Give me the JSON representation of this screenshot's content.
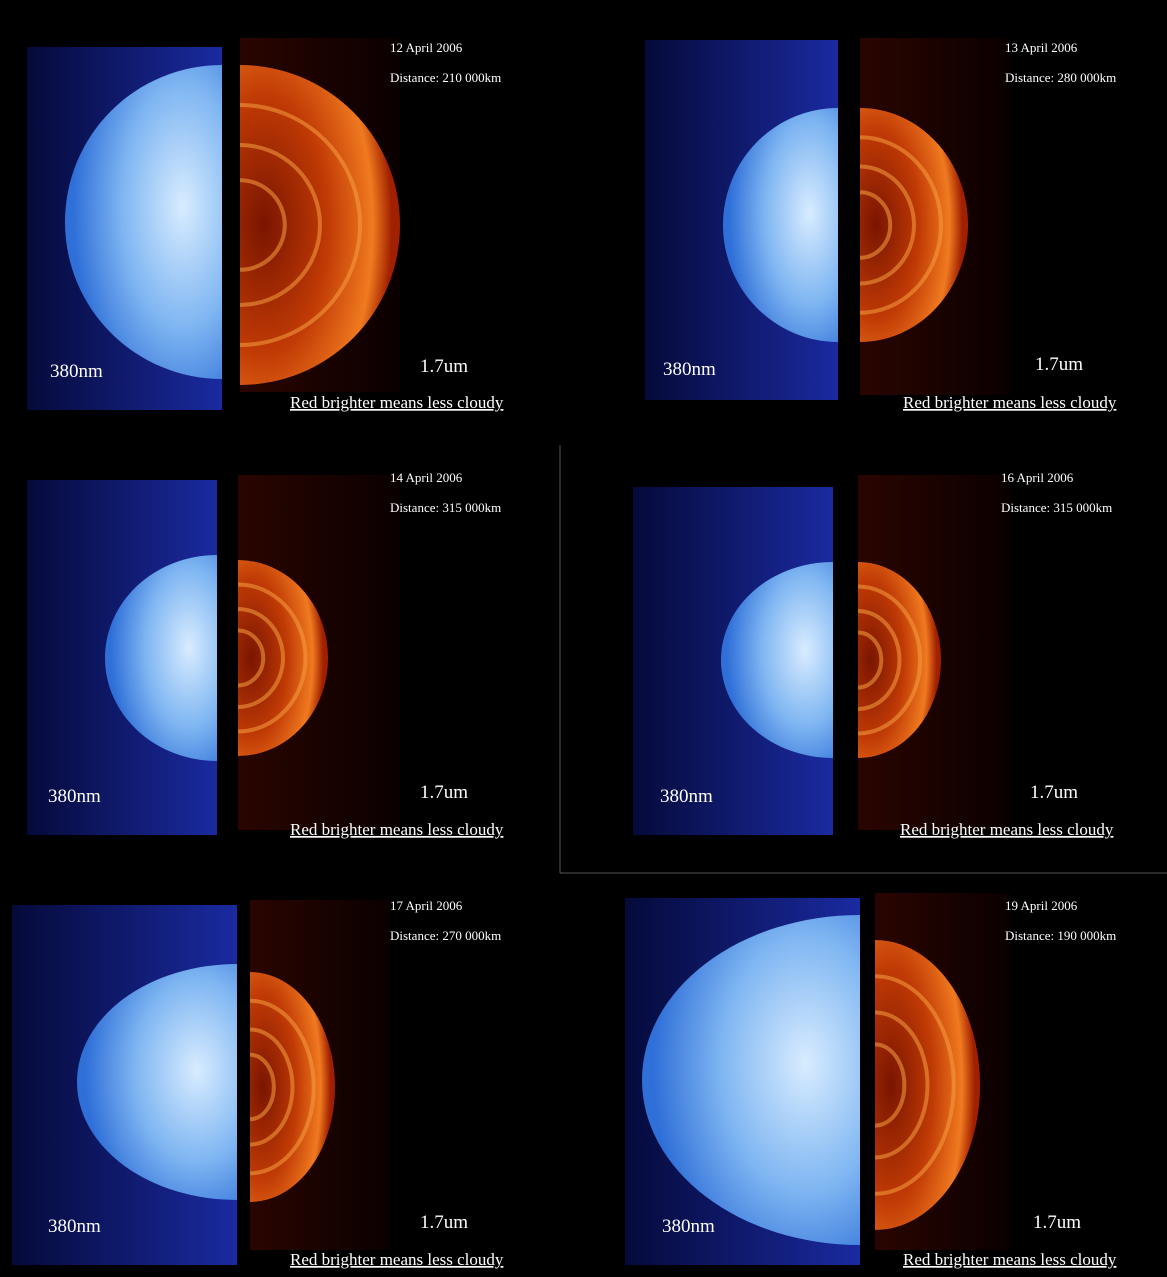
{
  "panels": [
    {
      "date": "12 April 2006",
      "distance": "Distance: 210 000km",
      "uv_label": "380nm",
      "ir_label": "1.7um",
      "caption": "Red brighter means less cloudy"
    },
    {
      "date": "13 April 2006",
      "distance": "Distance: 280 000km",
      "uv_label": "380nm",
      "ir_label": "1.7um",
      "caption": "Red brighter means less cloudy"
    },
    {
      "date": "14 April 2006",
      "distance": "Distance: 315 000km",
      "uv_label": "380nm",
      "ir_label": "1.7um",
      "caption": "Red brighter means less cloudy"
    },
    {
      "date": "16 April 2006",
      "distance": "Distance: 315 000km",
      "uv_label": "380nm",
      "ir_label": "1.7um",
      "caption": "Red brighter means less cloudy"
    },
    {
      "date": "17 April 2006",
      "distance": "Distance: 270 000km",
      "uv_label": "380nm",
      "ir_label": "1.7um",
      "caption": "Red brighter means less cloudy"
    },
    {
      "date": "19 April 2006",
      "distance": "Distance: 190 000km",
      "uv_label": "380nm",
      "ir_label": "1.7um",
      "caption": "Red brighter means less cloudy"
    }
  ]
}
